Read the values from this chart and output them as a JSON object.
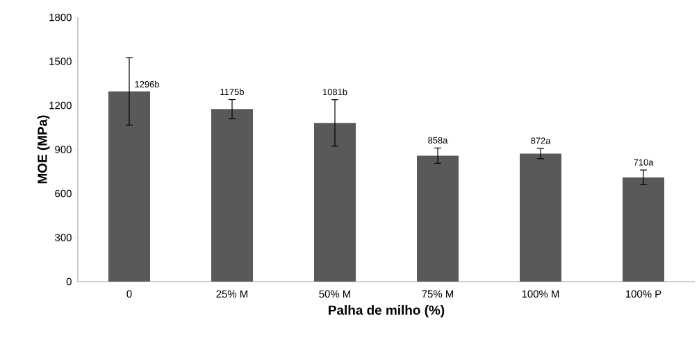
{
  "chart_data": {
    "type": "bar",
    "xlabel": "Palha de milho (%)",
    "ylabel": "MOE (MPa)",
    "categories": [
      "0",
      "25% M",
      "50% M",
      "75% M",
      "100% M",
      "100% P"
    ],
    "values": [
      1296,
      1175,
      1081,
      858,
      872,
      710
    ],
    "errors": [
      230,
      65,
      158,
      52,
      35,
      50
    ],
    "value_labels": [
      "1296b",
      "1175b",
      "1081b",
      "858a",
      "872a",
      "710a"
    ],
    "color": "#595959",
    "ylim": [
      0,
      1800
    ],
    "yticks": [
      0,
      300,
      600,
      900,
      1200,
      1500,
      1800
    ],
    "grid": false
  }
}
